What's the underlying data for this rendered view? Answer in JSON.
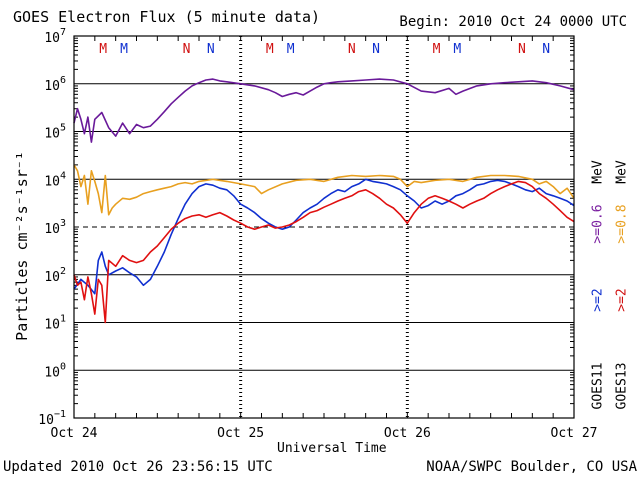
{
  "header": {
    "title": "GOES Electron Flux (5 minute data)",
    "begin": "Begin: 2010 Oct 24 0000 UTC"
  },
  "footer": {
    "updated": "Updated 2010 Oct 26 23:56:15 UTC",
    "credit": "NOAA/SWPC Boulder, CO USA"
  },
  "chart_data": {
    "type": "line",
    "title": "GOES Electron Flux (5 minute data)",
    "xlabel": "Universal Time",
    "ylabel": "Particles cm⁻²s⁻¹sr⁻¹",
    "yscale": "log",
    "ylim": [
      0.1,
      10000000
    ],
    "xlim_hours": [
      0,
      72
    ],
    "x_ticks": [
      {
        "hour": 0,
        "label": "Oct 24"
      },
      {
        "hour": 24,
        "label": "Oct 25"
      },
      {
        "hour": 48,
        "label": "Oct 26"
      },
      {
        "hour": 72,
        "label": "Oct 27"
      }
    ],
    "y_ticks": [
      {
        "exp": -1,
        "mantissa": "10",
        "sup": "−1"
      },
      {
        "exp": 0,
        "mantissa": "10",
        "sup": "0"
      },
      {
        "exp": 1,
        "mantissa": "10",
        "sup": "1"
      },
      {
        "exp": 2,
        "mantissa": "10",
        "sup": "2"
      },
      {
        "exp": 3,
        "mantissa": "10",
        "sup": "3"
      },
      {
        "exp": 4,
        "mantissa": "10",
        "sup": "4"
      },
      {
        "exp": 5,
        "mantissa": "10",
        "sup": "5"
      },
      {
        "exp": 6,
        "mantissa": "10",
        "sup": "6"
      },
      {
        "exp": 7,
        "mantissa": "10",
        "sup": "7"
      }
    ],
    "threshold": {
      "value": 1000,
      "style": "dashed"
    },
    "markers": [
      {
        "label": "M",
        "hour": 4.2,
        "color": "#d01010"
      },
      {
        "label": "M",
        "hour": 7.2,
        "color": "#1030d0"
      },
      {
        "label": "N",
        "hour": 16.2,
        "color": "#d01010"
      },
      {
        "label": "N",
        "hour": 19.7,
        "color": "#1030d0"
      },
      {
        "label": "M",
        "hour": 28.2,
        "color": "#d01010"
      },
      {
        "label": "M",
        "hour": 31.2,
        "color": "#1030d0"
      },
      {
        "label": "N",
        "hour": 40.0,
        "color": "#d01010"
      },
      {
        "label": "N",
        "hour": 43.5,
        "color": "#1030d0"
      },
      {
        "label": "M",
        "hour": 52.2,
        "color": "#d01010"
      },
      {
        "label": "M",
        "hour": 55.2,
        "color": "#1030d0"
      },
      {
        "label": "N",
        "hour": 64.5,
        "color": "#d01010"
      },
      {
        "label": "N",
        "hour": 68.0,
        "color": "#1030d0"
      }
    ],
    "legend": [
      {
        "label": "GOES11",
        "color": "#000000"
      },
      {
        "label": ">=2",
        "color": "#1030d0"
      },
      {
        "label": ">=0.6",
        "color": "#7a1fa0"
      },
      {
        "label": "MeV",
        "color": "#000000"
      },
      {
        "label": "GOES13",
        "color": "#000000"
      },
      {
        "label": ">=2",
        "color": "#d01010"
      },
      {
        "label": ">=0.8",
        "color": "#e8a020"
      },
      {
        "label": "MeV",
        "color": "#000000"
      }
    ],
    "series": [
      {
        "name": "GOES11 >=0.6 MeV",
        "color": "#6a1a9a",
        "points": [
          [
            0,
            150000
          ],
          [
            0.5,
            300000
          ],
          [
            1,
            180000
          ],
          [
            1.5,
            90000
          ],
          [
            2,
            200000
          ],
          [
            2.5,
            60000
          ],
          [
            3,
            180000
          ],
          [
            4,
            250000
          ],
          [
            5,
            120000
          ],
          [
            6,
            80000
          ],
          [
            7,
            150000
          ],
          [
            8,
            90000
          ],
          [
            9,
            140000
          ],
          [
            10,
            120000
          ],
          [
            11,
            130000
          ],
          [
            12,
            180000
          ],
          [
            13,
            260000
          ],
          [
            14,
            380000
          ],
          [
            15,
            520000
          ],
          [
            16,
            700000
          ],
          [
            17,
            900000
          ],
          [
            18,
            1050000
          ],
          [
            19,
            1200000
          ],
          [
            20,
            1250000
          ],
          [
            21,
            1150000
          ],
          [
            22,
            1100000
          ],
          [
            24,
            1000000
          ],
          [
            26,
            900000
          ],
          [
            28,
            750000
          ],
          [
            29,
            650000
          ],
          [
            30,
            540000
          ],
          [
            31,
            600000
          ],
          [
            32,
            650000
          ],
          [
            33,
            580000
          ],
          [
            34,
            700000
          ],
          [
            35,
            850000
          ],
          [
            36,
            1000000
          ],
          [
            37,
            1050000
          ],
          [
            38,
            1100000
          ],
          [
            40,
            1150000
          ],
          [
            42,
            1200000
          ],
          [
            44,
            1250000
          ],
          [
            46,
            1200000
          ],
          [
            48,
            1000000
          ],
          [
            50,
            700000
          ],
          [
            52,
            650000
          ],
          [
            54,
            800000
          ],
          [
            55,
            600000
          ],
          [
            56,
            700000
          ],
          [
            58,
            900000
          ],
          [
            60,
            1000000
          ],
          [
            62,
            1050000
          ],
          [
            64,
            1100000
          ],
          [
            66,
            1150000
          ],
          [
            68,
            1050000
          ],
          [
            70,
            900000
          ],
          [
            72,
            750000
          ]
        ]
      },
      {
        "name": "GOES13 >=0.8 MeV",
        "color": "#e8a020",
        "points": [
          [
            0,
            20000
          ],
          [
            0.5,
            15000
          ],
          [
            1,
            7000
          ],
          [
            1.5,
            12000
          ],
          [
            2,
            3000
          ],
          [
            2.5,
            15000
          ],
          [
            3,
            9000
          ],
          [
            3.5,
            5000
          ],
          [
            4,
            2000
          ],
          [
            4.5,
            12000
          ],
          [
            5,
            1800
          ],
          [
            5.5,
            2500
          ],
          [
            6,
            3000
          ],
          [
            7,
            4000
          ],
          [
            8,
            3800
          ],
          [
            9,
            4200
          ],
          [
            10,
            5000
          ],
          [
            11,
            5500
          ],
          [
            12,
            6000
          ],
          [
            13,
            6500
          ],
          [
            14,
            7000
          ],
          [
            15,
            8000
          ],
          [
            16,
            8500
          ],
          [
            17,
            8000
          ],
          [
            18,
            9000
          ],
          [
            20,
            10000
          ],
          [
            22,
            9000
          ],
          [
            24,
            8000
          ],
          [
            26,
            7000
          ],
          [
            27,
            5000
          ],
          [
            28,
            6000
          ],
          [
            30,
            8000
          ],
          [
            32,
            9500
          ],
          [
            34,
            10000
          ],
          [
            36,
            9000
          ],
          [
            38,
            11000
          ],
          [
            40,
            12000
          ],
          [
            42,
            11500
          ],
          [
            44,
            12000
          ],
          [
            46,
            11500
          ],
          [
            47,
            10000
          ],
          [
            48,
            7000
          ],
          [
            49,
            9000
          ],
          [
            50,
            8500
          ],
          [
            52,
            9500
          ],
          [
            54,
            10000
          ],
          [
            56,
            9000
          ],
          [
            58,
            11000
          ],
          [
            60,
            12000
          ],
          [
            62,
            12000
          ],
          [
            64,
            11500
          ],
          [
            66,
            10000
          ],
          [
            67,
            8000
          ],
          [
            68,
            9000
          ],
          [
            69,
            7000
          ],
          [
            70,
            5000
          ],
          [
            71,
            6500
          ],
          [
            72,
            4000
          ]
        ]
      },
      {
        "name": "GOES11 >=2 MeV",
        "color": "#1030d0",
        "points": [
          [
            0,
            50
          ],
          [
            1,
            80
          ],
          [
            2,
            60
          ],
          [
            3,
            40
          ],
          [
            3.5,
            200
          ],
          [
            4,
            300
          ],
          [
            4.5,
            150
          ],
          [
            5,
            100
          ],
          [
            6,
            120
          ],
          [
            7,
            140
          ],
          [
            8,
            110
          ],
          [
            9,
            90
          ],
          [
            10,
            60
          ],
          [
            11,
            80
          ],
          [
            12,
            150
          ],
          [
            13,
            300
          ],
          [
            14,
            700
          ],
          [
            15,
            1500
          ],
          [
            16,
            3000
          ],
          [
            17,
            5000
          ],
          [
            18,
            7000
          ],
          [
            19,
            8000
          ],
          [
            20,
            7500
          ],
          [
            21,
            6500
          ],
          [
            22,
            6000
          ],
          [
            23,
            4500
          ],
          [
            24,
            3000
          ],
          [
            25,
            2500
          ],
          [
            26,
            2000
          ],
          [
            27,
            1500
          ],
          [
            28,
            1200
          ],
          [
            29,
            1000
          ],
          [
            30,
            900
          ],
          [
            31,
            1000
          ],
          [
            32,
            1400
          ],
          [
            33,
            2000
          ],
          [
            34,
            2500
          ],
          [
            35,
            3000
          ],
          [
            36,
            4000
          ],
          [
            37,
            5000
          ],
          [
            38,
            6000
          ],
          [
            39,
            5500
          ],
          [
            40,
            7000
          ],
          [
            41,
            8000
          ],
          [
            42,
            10000
          ],
          [
            43,
            9000
          ],
          [
            44,
            8500
          ],
          [
            45,
            8000
          ],
          [
            46,
            7000
          ],
          [
            47,
            6000
          ],
          [
            48,
            4500
          ],
          [
            49,
            3500
          ],
          [
            50,
            2500
          ],
          [
            51,
            2800
          ],
          [
            52,
            3500
          ],
          [
            53,
            3000
          ],
          [
            54,
            3500
          ],
          [
            55,
            4500
          ],
          [
            56,
            5000
          ],
          [
            57,
            6000
          ],
          [
            58,
            7500
          ],
          [
            59,
            8000
          ],
          [
            60,
            9000
          ],
          [
            61,
            9500
          ],
          [
            62,
            9000
          ],
          [
            63,
            8000
          ],
          [
            64,
            7000
          ],
          [
            65,
            6000
          ],
          [
            66,
            5500
          ],
          [
            67,
            6500
          ],
          [
            68,
            5000
          ],
          [
            69,
            4500
          ],
          [
            70,
            4000
          ],
          [
            71,
            3500
          ],
          [
            72,
            2800
          ]
        ]
      },
      {
        "name": "GOES13 >=2 MeV",
        "color": "#e01010",
        "points": [
          [
            0,
            100
          ],
          [
            0.5,
            60
          ],
          [
            1,
            70
          ],
          [
            1.5,
            30
          ],
          [
            2,
            90
          ],
          [
            2.5,
            40
          ],
          [
            3,
            15
          ],
          [
            3.5,
            80
          ],
          [
            4,
            60
          ],
          [
            4.5,
            10
          ],
          [
            5,
            200
          ],
          [
            6,
            150
          ],
          [
            7,
            250
          ],
          [
            8,
            200
          ],
          [
            9,
            180
          ],
          [
            10,
            200
          ],
          [
            11,
            300
          ],
          [
            12,
            400
          ],
          [
            13,
            600
          ],
          [
            14,
            900
          ],
          [
            15,
            1200
          ],
          [
            16,
            1500
          ],
          [
            17,
            1700
          ],
          [
            18,
            1800
          ],
          [
            19,
            1600
          ],
          [
            20,
            1800
          ],
          [
            21,
            2000
          ],
          [
            22,
            1700
          ],
          [
            23,
            1400
          ],
          [
            24,
            1200
          ],
          [
            25,
            1000
          ],
          [
            26,
            900
          ],
          [
            27,
            1000
          ],
          [
            28,
            1100
          ],
          [
            29,
            950
          ],
          [
            30,
            1000
          ],
          [
            31,
            1100
          ],
          [
            32,
            1300
          ],
          [
            33,
            1600
          ],
          [
            34,
            2000
          ],
          [
            35,
            2200
          ],
          [
            36,
            2600
          ],
          [
            37,
            3000
          ],
          [
            38,
            3500
          ],
          [
            39,
            4000
          ],
          [
            40,
            4500
          ],
          [
            41,
            5500
          ],
          [
            42,
            6000
          ],
          [
            43,
            5000
          ],
          [
            44,
            4000
          ],
          [
            45,
            3000
          ],
          [
            46,
            2500
          ],
          [
            47,
            1800
          ],
          [
            48,
            1200
          ],
          [
            49,
            2000
          ],
          [
            50,
            3000
          ],
          [
            51,
            4000
          ],
          [
            52,
            4500
          ],
          [
            53,
            4000
          ],
          [
            54,
            3500
          ],
          [
            55,
            3000
          ],
          [
            56,
            2500
          ],
          [
            57,
            3000
          ],
          [
            58,
            3500
          ],
          [
            59,
            4000
          ],
          [
            60,
            5000
          ],
          [
            61,
            6000
          ],
          [
            62,
            7000
          ],
          [
            63,
            8000
          ],
          [
            64,
            9000
          ],
          [
            65,
            8500
          ],
          [
            66,
            7000
          ],
          [
            67,
            5000
          ],
          [
            68,
            4000
          ],
          [
            69,
            3000
          ],
          [
            70,
            2200
          ],
          [
            71,
            1600
          ],
          [
            72,
            1300
          ]
        ]
      }
    ]
  }
}
